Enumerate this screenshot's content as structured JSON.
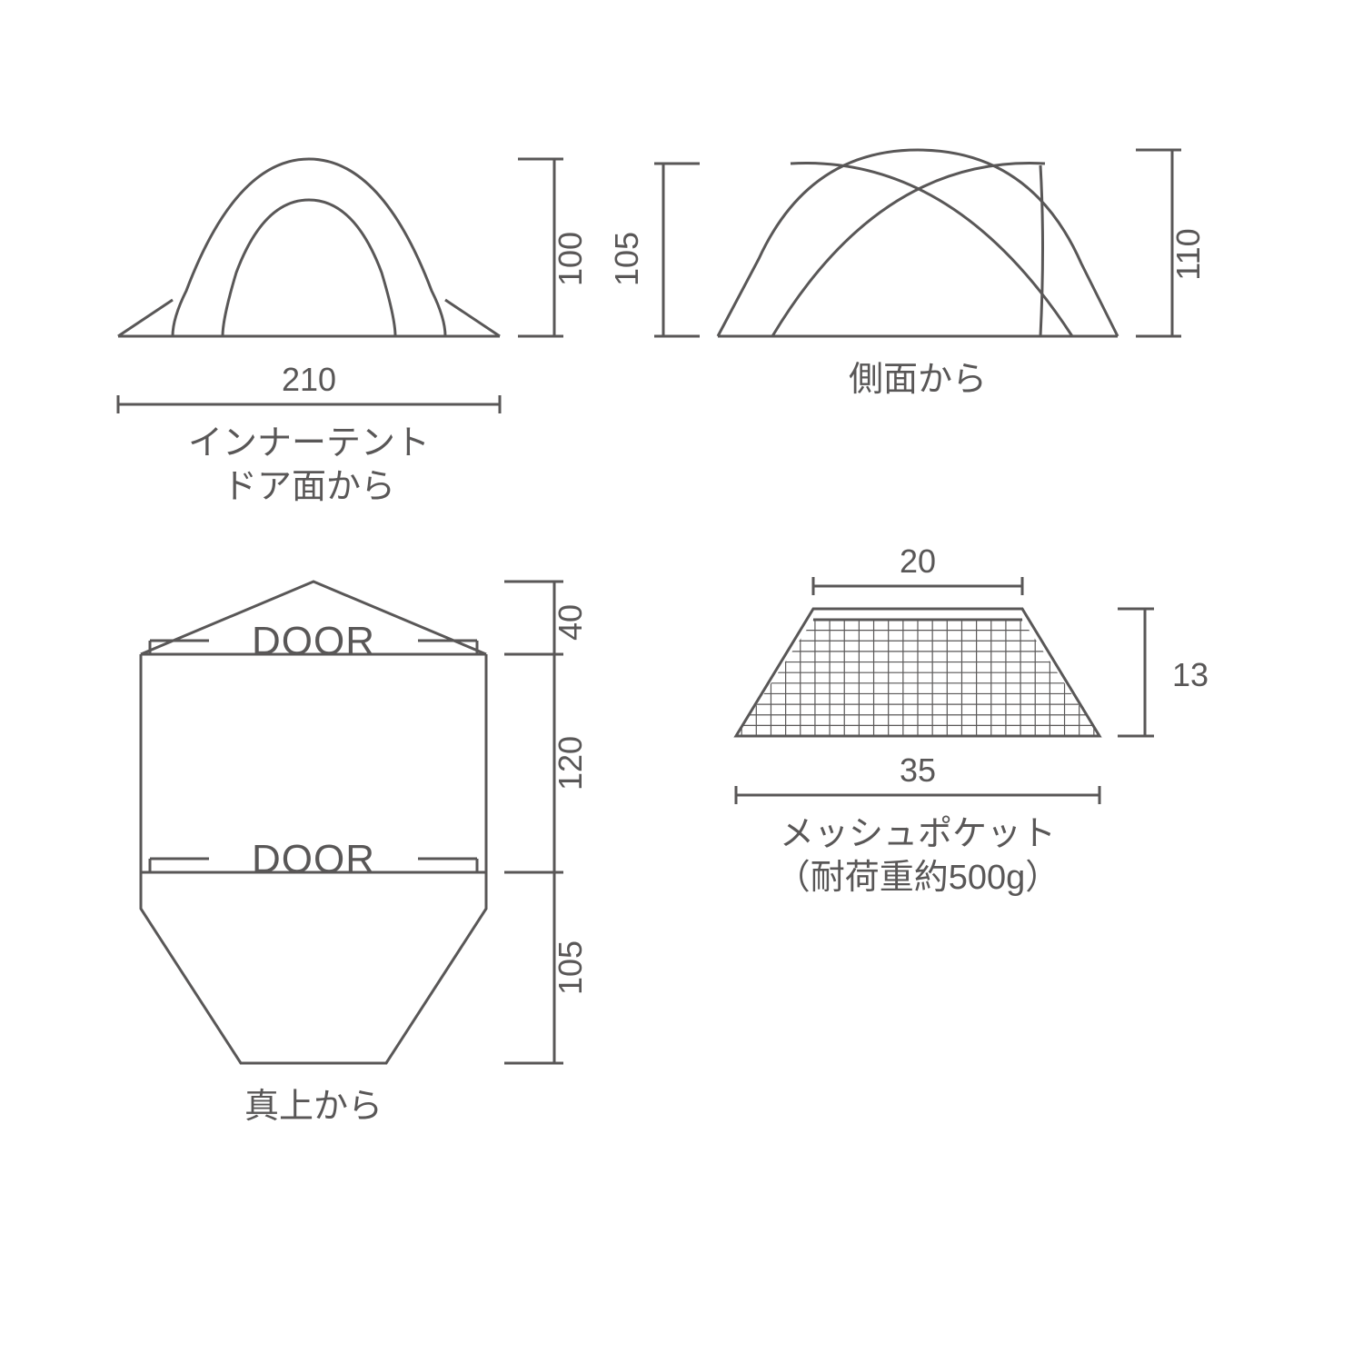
{
  "colors": {
    "stroke": "#595757",
    "text": "#595757",
    "bg": "#ffffff"
  },
  "stroke_width": 3,
  "font": {
    "dim_size": 36,
    "label_size": 38,
    "door_size": 44
  },
  "front_view": {
    "width_label": "210",
    "height_label": "100",
    "caption_line1": "インナーテント",
    "caption_line2": "ドア面から"
  },
  "side_view": {
    "left_height_label": "105",
    "right_height_label": "110",
    "caption": "側面から"
  },
  "top_view": {
    "door_label": "DOOR",
    "dim_top": "40",
    "dim_mid": "120",
    "dim_bottom": "105",
    "caption": "真上から"
  },
  "mesh_pocket": {
    "top_width_label": "20",
    "bottom_width_label": "35",
    "height_label": "13",
    "caption_line1": "メッシュポケット",
    "caption_line2": "（耐荷重約500g）",
    "grid_rows": 11,
    "grid_cols": 26
  }
}
